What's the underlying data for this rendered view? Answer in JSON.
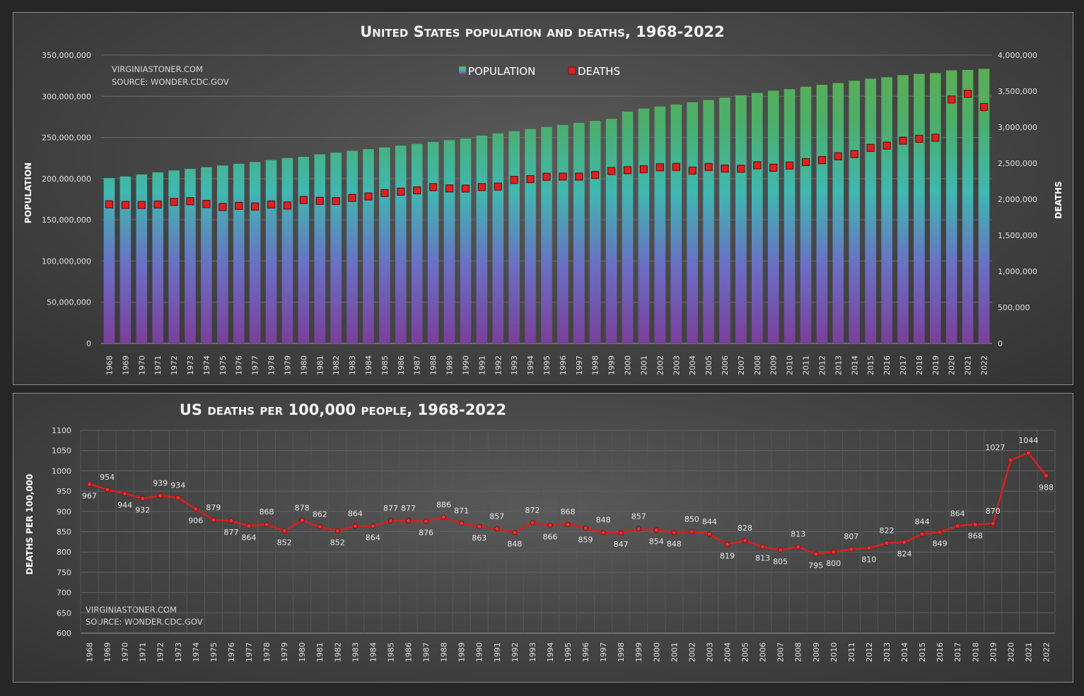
{
  "chart_data": [
    {
      "type": "bar",
      "title": "United States population and deaths, 1968-2022",
      "source_line1": "VIRGINIASTONER.COM",
      "source_line2": "SOURCE: WONDER.CDC.GOV",
      "ylabel": "POPULATION",
      "y2label": "DEATHS",
      "ylim": [
        0,
        350000000
      ],
      "y2lim": [
        0,
        4000000
      ],
      "yticks": [
        "0",
        "50,000,000",
        "100,000,000",
        "150,000,000",
        "200,000,000",
        "250,000,000",
        "300,000,000",
        "350,000,000"
      ],
      "y2ticks": [
        "0",
        "500,000",
        "1,000,000",
        "1,500,000",
        "2,000,000",
        "2,500,000",
        "3,000,000",
        "3,500,000",
        "4,000,000"
      ],
      "legend": {
        "population": "POPULATION",
        "deaths": "DEATHS"
      },
      "categories": [
        "1968",
        "1969",
        "1970",
        "1971",
        "1972",
        "1973",
        "1974",
        "1975",
        "1976",
        "1977",
        "1978",
        "1979",
        "1980",
        "1981",
        "1982",
        "1983",
        "1984",
        "1985",
        "1986",
        "1987",
        "1988",
        "1989",
        "1990",
        "1991",
        "1992",
        "1993",
        "1994",
        "1995",
        "1996",
        "1997",
        "1998",
        "1999",
        "2000",
        "2001",
        "2002",
        "2003",
        "2004",
        "2005",
        "2006",
        "2007",
        "2008",
        "2009",
        "2010",
        "2011",
        "2012",
        "2013",
        "2014",
        "2015",
        "2016",
        "2017",
        "2018",
        "2019",
        "2020",
        "2021",
        "2022"
      ],
      "series": [
        {
          "name": "POPULATION",
          "kind": "bar",
          "axis": "left",
          "values": [
            200700000,
            202700000,
            205100000,
            207700000,
            209900000,
            211900000,
            213900000,
            216000000,
            218000000,
            220200000,
            222600000,
            225100000,
            226500000,
            229500000,
            231700000,
            233800000,
            235800000,
            237900000,
            240100000,
            242300000,
            244500000,
            246800000,
            248700000,
            252200000,
            255000000,
            257700000,
            260300000,
            262800000,
            265200000,
            267800000,
            270200000,
            272700000,
            281400000,
            285000000,
            287600000,
            290100000,
            292800000,
            295500000,
            298400000,
            301200000,
            304100000,
            306800000,
            308700000,
            311600000,
            313900000,
            316100000,
            318900000,
            321400000,
            323100000,
            325700000,
            327200000,
            328200000,
            331500000,
            332000000,
            333300000
          ]
        },
        {
          "name": "DEATHS",
          "kind": "marker",
          "axis": "right",
          "values": [
            1930082,
            1921990,
            1921031,
            1927542,
            1963944,
            1973003,
            1934388,
            1892879,
            1909440,
            1899597,
            1927788,
            1913841,
            1989841,
            1977981,
            1974797,
            2019201,
            2039369,
            2086440,
            2105361,
            2123323,
            2167999,
            2150466,
            2148463,
            2169518,
            2175613,
            2268553,
            2278994,
            2312132,
            2314690,
            2314245,
            2337256,
            2391399,
            2403351,
            2416425,
            2443387,
            2448288,
            2397615,
            2448017,
            2426264,
            2423712,
            2471984,
            2437163,
            2468435,
            2515458,
            2543279,
            2596993,
            2626418,
            2712630,
            2744248,
            2813503,
            2839205,
            2854838,
            3383729,
            3464231,
            3279857
          ]
        }
      ]
    },
    {
      "type": "line",
      "title": "US deaths per 100,000 people, 1968-2022",
      "source_line1": "VIRGINIASTONER.COM",
      "source_line2": "SOURCE: WONDER.CDC.GOV",
      "ylabel": "DEATHS PER 100,000",
      "ylim": [
        600,
        1100
      ],
      "yticks": [
        "600",
        "650",
        "700",
        "750",
        "800",
        "850",
        "900",
        "950",
        "1000",
        "1050",
        "1100"
      ],
      "categories": [
        "1968",
        "1969",
        "1970",
        "1971",
        "1972",
        "1973",
        "1974",
        "1975",
        "1976",
        "1977",
        "1978",
        "1979",
        "1980",
        "1981",
        "1982",
        "1983",
        "1984",
        "1985",
        "1986",
        "1987",
        "1988",
        "1989",
        "1990",
        "1991",
        "1992",
        "1993",
        "1994",
        "1995",
        "1996",
        "1997",
        "1998",
        "1999",
        "2000",
        "2001",
        "2002",
        "2003",
        "2004",
        "2005",
        "2006",
        "2007",
        "2008",
        "2009",
        "2010",
        "2011",
        "2012",
        "2013",
        "2014",
        "2015",
        "2016",
        "2017",
        "2018",
        "2019",
        "2020",
        "2021",
        "2022"
      ],
      "series": [
        {
          "name": "Deaths per 100,000",
          "values": [
            967,
            954,
            944,
            932,
            939,
            934,
            906,
            879,
            877,
            864,
            868,
            852,
            878,
            862,
            852,
            864,
            864,
            877,
            877,
            876,
            886,
            871,
            863,
            857,
            848,
            872,
            866,
            868,
            859,
            848,
            847,
            857,
            854,
            848,
            850,
            844,
            819,
            828,
            813,
            805,
            813,
            795,
            800,
            807,
            810,
            822,
            824,
            844,
            849,
            864,
            868,
            870,
            1027,
            1044,
            988
          ],
          "labels": [
            "967",
            "954",
            "944",
            "932",
            "939",
            "934",
            "906",
            "879",
            "877",
            "864",
            "868",
            "852",
            "878",
            "862",
            "852",
            "864",
            "864",
            "877",
            "877",
            "876",
            "886",
            "871",
            "863",
            "857",
            "848",
            "872",
            "866",
            "868",
            "859",
            "848",
            "847",
            "857",
            "854",
            "848",
            "850",
            "844",
            "819",
            "828",
            "813",
            "805",
            "813",
            "795",
            "800",
            "807",
            "810",
            "822",
            "824",
            "844",
            "849",
            "864",
            "868",
            "870",
            "1027",
            "1044",
            "988"
          ]
        }
      ]
    }
  ]
}
